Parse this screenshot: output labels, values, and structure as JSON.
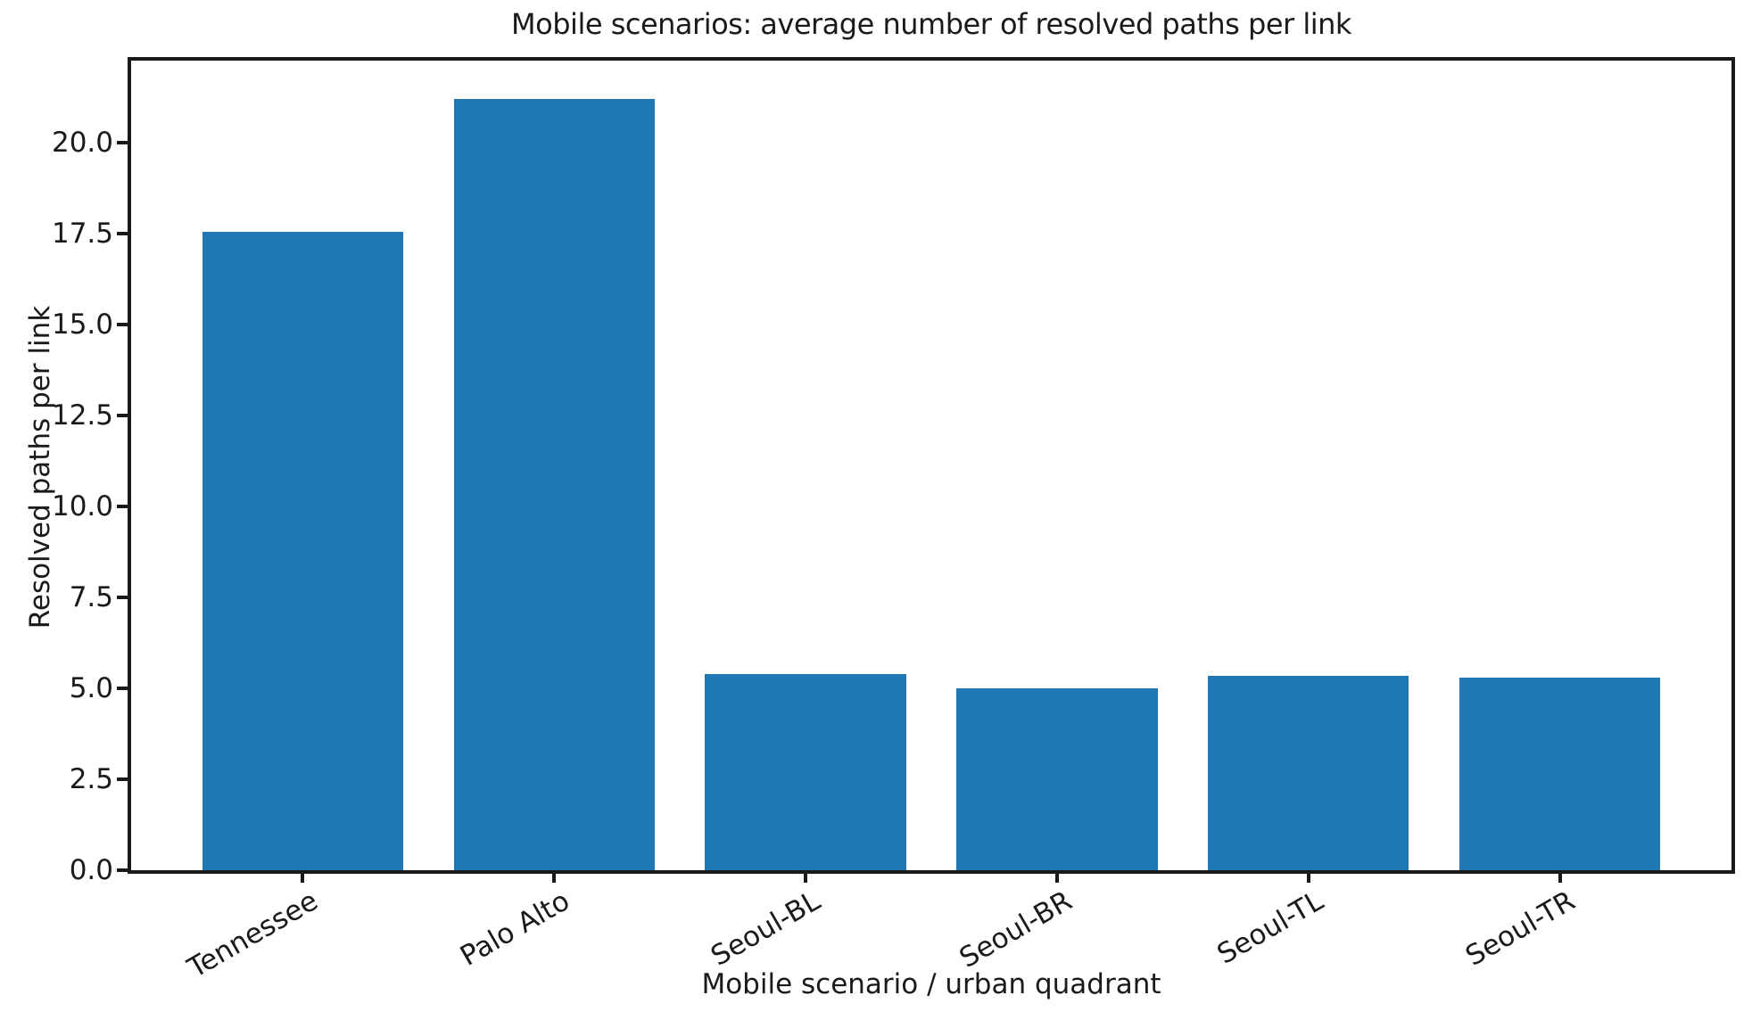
{
  "figure": {
    "title": "Mobile scenarios: average number of resolved paths per link"
  },
  "chart_data": {
    "type": "bar",
    "title": "Mobile scenarios: average number of resolved paths per link",
    "xlabel": "Mobile scenario / urban quadrant",
    "ylabel": "Resolved paths per link",
    "categories": [
      "Tennessee",
      "Palo Alto",
      "Seoul-BL",
      "Seoul-BR",
      "Seoul-TL",
      "Seoul-TR"
    ],
    "values": [
      17.55,
      21.2,
      5.4,
      5.0,
      5.35,
      5.3
    ],
    "ytick_values": [
      0,
      2.5,
      5,
      7.5,
      10,
      12.5,
      15,
      17.5,
      20
    ],
    "ytick_labels": [
      "0.0",
      "2.5",
      "5.0",
      "7.5",
      "10.0",
      "12.5",
      "15.0",
      "17.5",
      "20.0"
    ],
    "ylim": [
      0,
      22.3
    ],
    "xlim": [
      -0.69,
      5.69
    ],
    "bar_width": 0.8,
    "bar_color": "#1f77b4",
    "axis_color": "#1a1a1a",
    "grid": false,
    "legend": null
  }
}
